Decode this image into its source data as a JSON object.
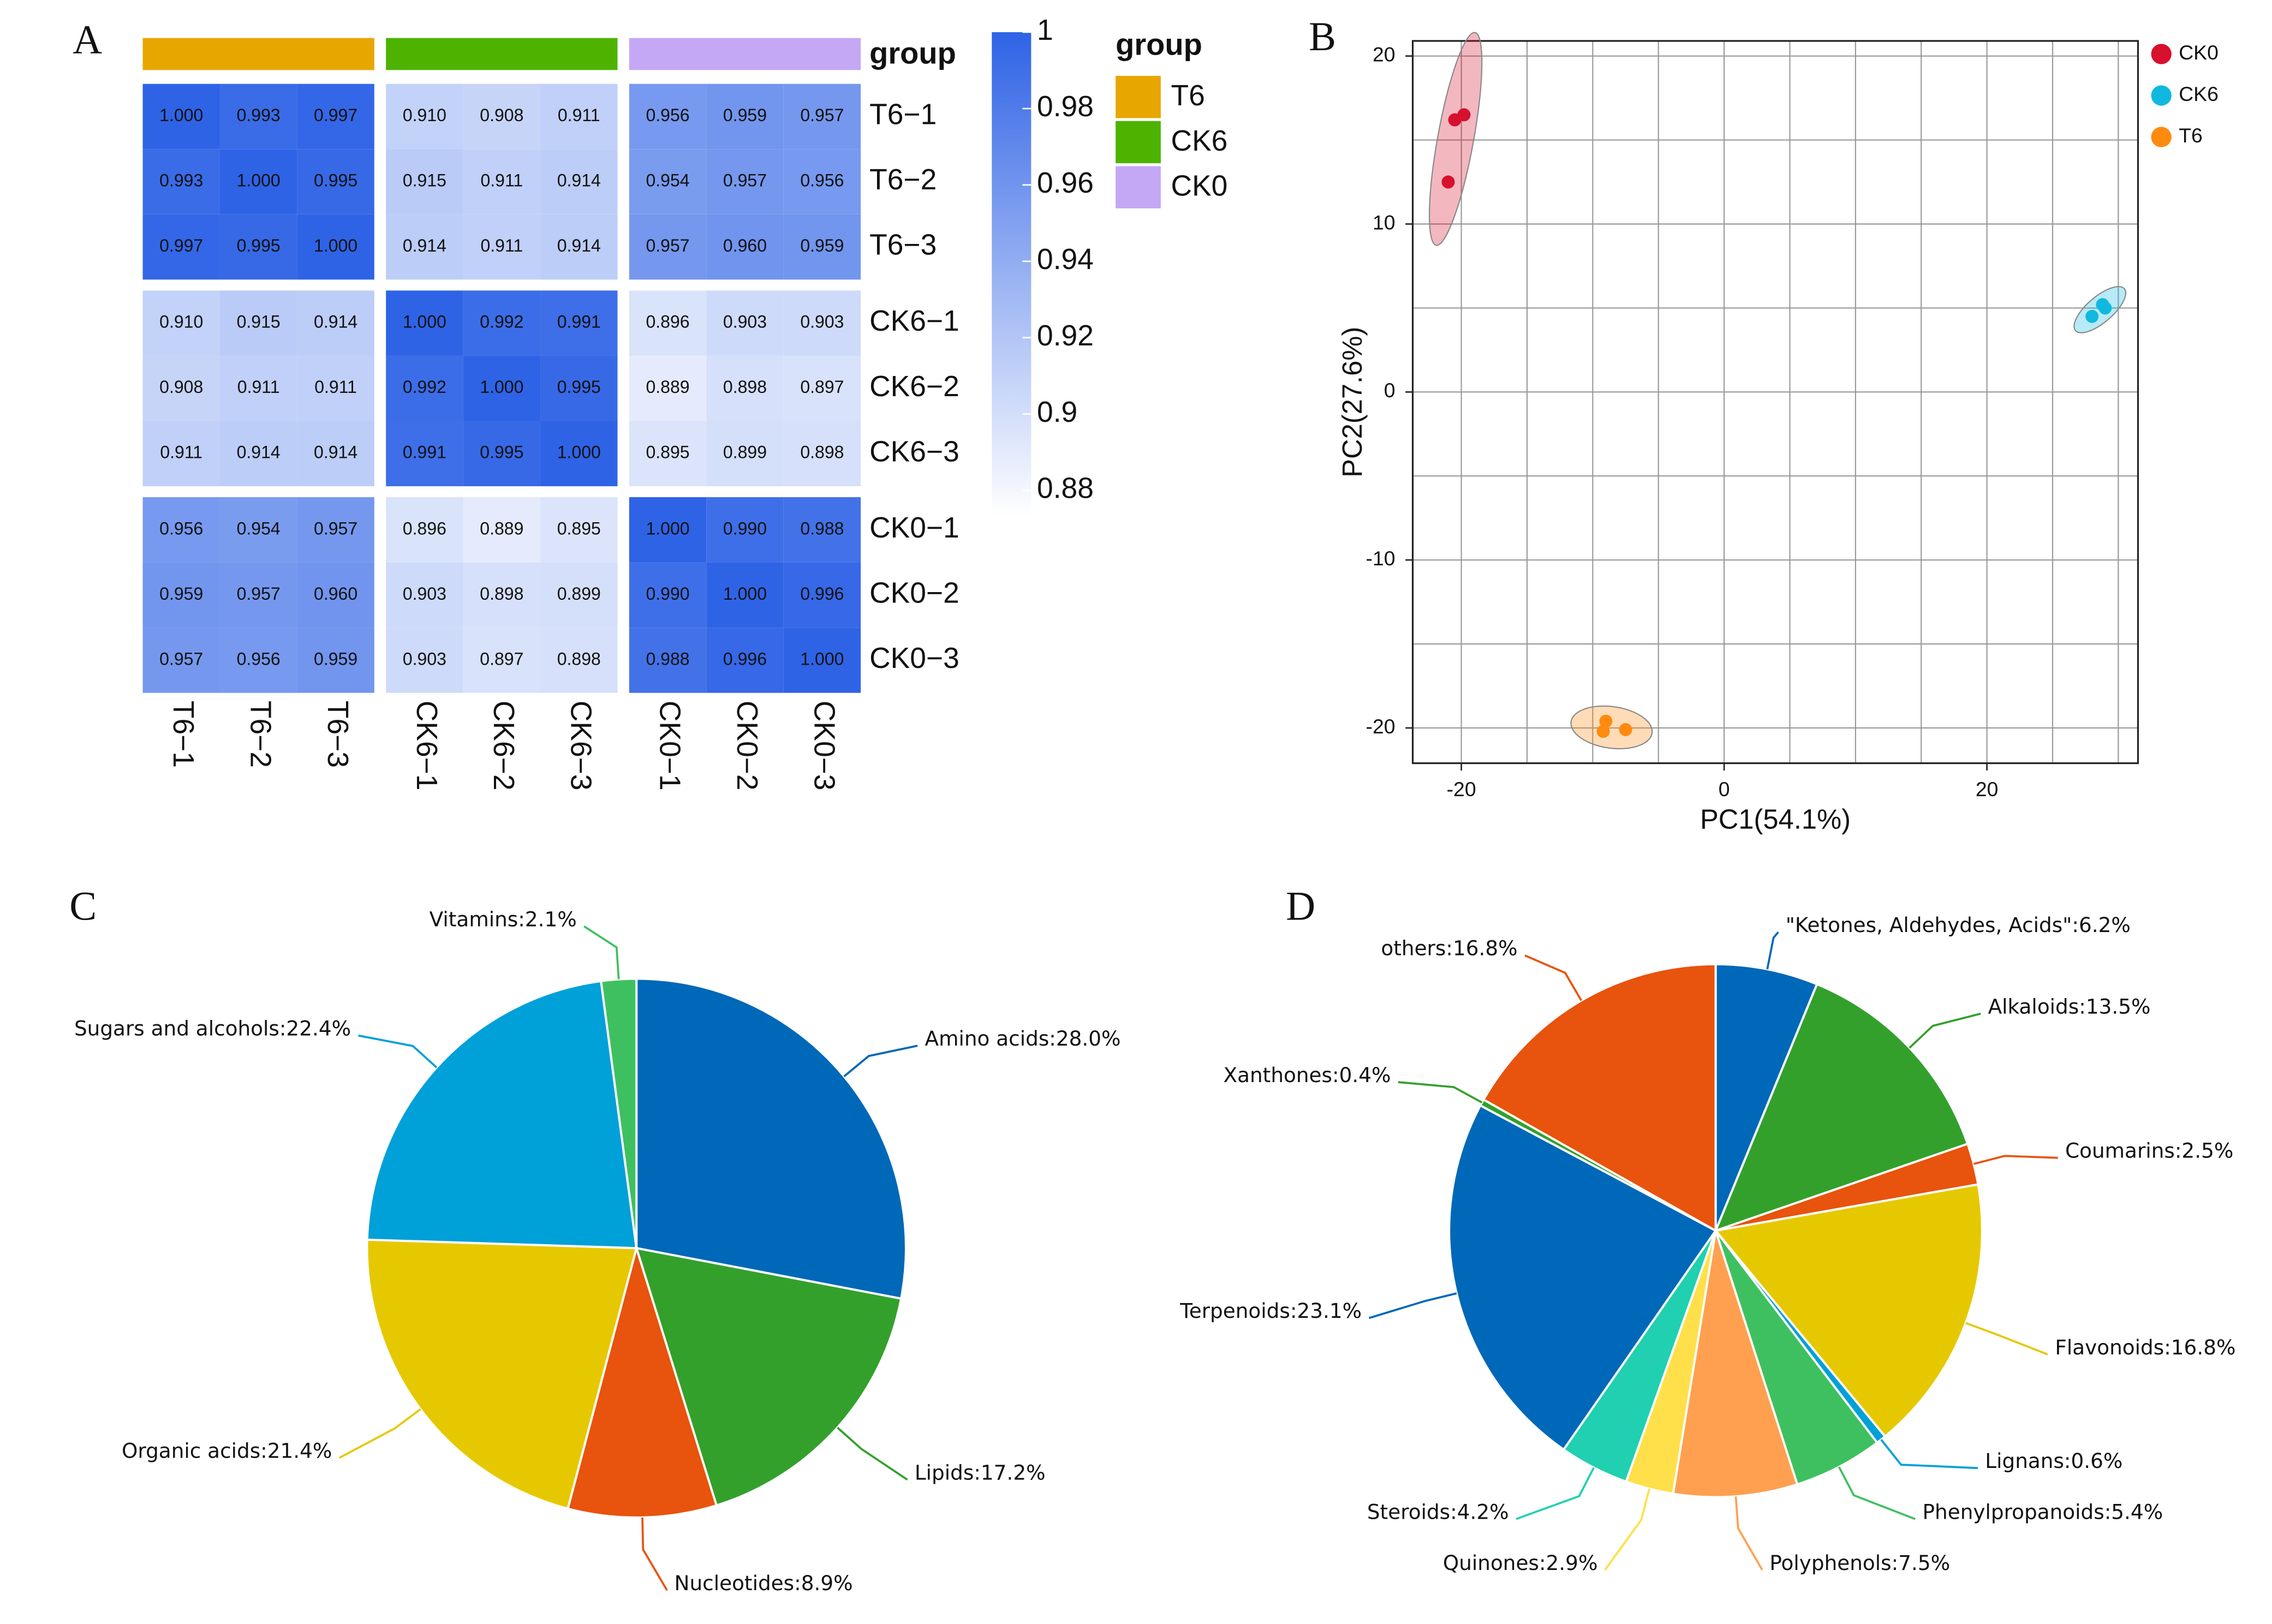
{
  "chart_data": [
    {
      "type": "heatmap",
      "panel_label": "A",
      "rows": [
        "T6−1",
        "T6−2",
        "T6−3",
        "CK6−1",
        "CK6−2",
        "CK6−3",
        "CK0−1",
        "CK0−2",
        "CK0−3"
      ],
      "columns": [
        "T6−1",
        "T6−2",
        "T6−3",
        "CK6−1",
        "CK6−2",
        "CK6−3",
        "CK0−1",
        "CK0−2",
        "CK0−3"
      ],
      "values": [
        [
          1.0,
          0.993,
          0.997,
          0.91,
          0.908,
          0.911,
          0.956,
          0.959,
          0.957
        ],
        [
          0.993,
          1.0,
          0.995,
          0.915,
          0.911,
          0.914,
          0.954,
          0.957,
          0.956
        ],
        [
          0.997,
          0.995,
          1.0,
          0.914,
          0.911,
          0.914,
          0.957,
          0.96,
          0.959
        ],
        [
          0.91,
          0.915,
          0.914,
          1.0,
          0.992,
          0.991,
          0.896,
          0.903,
          0.903
        ],
        [
          0.908,
          0.911,
          0.911,
          0.992,
          1.0,
          0.995,
          0.889,
          0.898,
          0.897
        ],
        [
          0.911,
          0.914,
          0.914,
          0.991,
          0.995,
          1.0,
          0.895,
          0.899,
          0.898
        ],
        [
          0.956,
          0.954,
          0.957,
          0.896,
          0.889,
          0.895,
          1.0,
          0.99,
          0.988
        ],
        [
          0.959,
          0.957,
          0.96,
          0.903,
          0.898,
          0.899,
          0.99,
          1.0,
          0.996
        ],
        [
          0.957,
          0.956,
          0.959,
          0.903,
          0.897,
          0.898,
          0.988,
          0.996,
          1.0
        ]
      ],
      "value_labels": [
        [
          "1.000",
          "0.993",
          "0.997",
          "0.910",
          "0.908",
          "0.911",
          "0.956",
          "0.959",
          "0.957"
        ],
        [
          "0.993",
          "1.000",
          "0.995",
          "0.915",
          "0.911",
          "0.914",
          "0.954",
          "0.957",
          "0.956"
        ],
        [
          "0.997",
          "0.995",
          "1.000",
          "0.914",
          "0.911",
          "0.914",
          "0.957",
          "0.960",
          "0.959"
        ],
        [
          "0.910",
          "0.915",
          "0.914",
          "1.000",
          "0.992",
          "0.991",
          "0.896",
          "0.903",
          "0.903"
        ],
        [
          "0.908",
          "0.911",
          "0.911",
          "0.992",
          "1.000",
          "0.995",
          "0.889",
          "0.898",
          "0.897"
        ],
        [
          "0.911",
          "0.914",
          "0.914",
          "0.991",
          "0.995",
          "1.000",
          "0.895",
          "0.899",
          "0.898"
        ],
        [
          "0.956",
          "0.954",
          "0.957",
          "0.896",
          "0.889",
          "0.895",
          "1.000",
          "0.990",
          "0.988"
        ],
        [
          "0.959",
          "0.957",
          "0.960",
          "0.903",
          "0.898",
          "0.899",
          "0.990",
          "1.000",
          "0.996"
        ],
        [
          "0.957",
          "0.956",
          "0.959",
          "0.903",
          "0.897",
          "0.898",
          "0.988",
          "0.996",
          "1.000"
        ]
      ],
      "annotation_title": "group",
      "legend_title": "group",
      "groups": [
        {
          "name": "T6",
          "color": "#e8a600"
        },
        {
          "name": "CK6",
          "color": "#4db300"
        },
        {
          "name": "CK0",
          "color": "#c4a8f5"
        }
      ],
      "colorbar": {
        "lim": [
          0.873,
          1
        ],
        "ticks": [
          0.88,
          0.9,
          0.92,
          0.94,
          0.96,
          0.98,
          1
        ],
        "colors": [
          "#ffffff",
          "#2f63e6"
        ]
      }
    },
    {
      "type": "scatter",
      "panel_label": "B",
      "xlabel": "PC1(54.1%)",
      "ylabel": "PC2(27.6%)",
      "xlim": [
        -23.7,
        31.5
      ],
      "ylim": [
        -22.1,
        20.9
      ],
      "xticks": [
        -20,
        0,
        20
      ],
      "yticks": [
        -20,
        -10,
        0,
        10,
        20
      ],
      "xgrid": [
        -20,
        -15,
        -10,
        -5,
        0,
        5,
        10,
        15,
        20,
        25,
        30
      ],
      "ygrid": [
        -20,
        -15,
        -10,
        -5,
        0,
        5,
        10,
        15,
        20
      ],
      "grid": true,
      "legend": "right",
      "series": [
        {
          "name": "CK0",
          "color": "#d7102d",
          "x": [
            -20.5,
            -19.8,
            -21.0
          ],
          "values": [
            16.2,
            16.5,
            12.5
          ]
        },
        {
          "name": "CK6",
          "color": "#10b8e0",
          "x": [
            28.0,
            28.8,
            29.0
          ],
          "values": [
            4.5,
            5.2,
            5.0
          ]
        },
        {
          "name": "T6",
          "color": "#ff8a10",
          "x": [
            -9.0,
            -9.2,
            -7.5
          ],
          "values": [
            -19.6,
            -20.2,
            -20.1
          ]
        }
      ]
    },
    {
      "type": "pie",
      "panel_label": "C",
      "values": [
        28.0,
        17.2,
        8.9,
        21.4,
        22.4,
        2.1
      ],
      "value_labels": [
        "Amino acids:28.0%",
        "Lipids:17.2%",
        "Nucleotides:8.9%",
        "Organic acids:21.4%",
        "Sugars and alcohols:22.4%",
        "Vitamins:2.1%"
      ],
      "colors": [
        "#0068b8",
        "#33a02c",
        "#e8530e",
        "#e6c800",
        "#00a0d8",
        "#3fc060"
      ]
    },
    {
      "type": "pie",
      "panel_label": "D",
      "values": [
        6.2,
        13.5,
        2.5,
        16.8,
        0.6,
        5.4,
        7.5,
        2.9,
        4.2,
        23.1,
        0.4,
        16.8
      ],
      "value_labels": [
        "\"Ketones, Aldehydes, Acids\":6.2%",
        "Alkaloids:13.5%",
        "Coumarins:2.5%",
        "Flavonoids:16.8%",
        "Lignans:0.6%",
        "Phenylpropanoids:5.4%",
        "Polyphenols:7.5%",
        "Quinones:2.9%",
        "Steroids:4.2%",
        "Terpenoids:23.1%",
        "Xanthones:0.4%",
        "others:16.8%"
      ],
      "colors": [
        "#0068b8",
        "#33a02c",
        "#e8530e",
        "#e6c800",
        "#00a0d8",
        "#3fc060",
        "#ffa050",
        "#ffe04a",
        "#20d0b0",
        "#0068b8",
        "#33a02c",
        "#e8530e"
      ]
    }
  ]
}
